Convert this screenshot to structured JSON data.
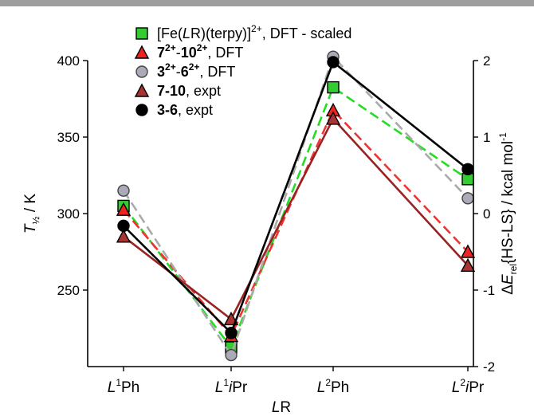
{
  "chart_data": {
    "type": "line",
    "categories": [
      {
        "base": "L",
        "sup": "1",
        "tail": "Ph",
        "tail_italic": false
      },
      {
        "base": "L",
        "sup": "1",
        "tail": "iPr",
        "tail_italic": true
      },
      {
        "base": "L",
        "sup": "2",
        "tail": "Ph",
        "tail_italic": false
      },
      {
        "base": "L",
        "sup": "2",
        "tail": "iPr",
        "tail_italic": true
      }
    ],
    "xlabel": {
      "italic": "L",
      "rest": "R"
    },
    "ylabel": {
      "italic": "T",
      "sub": "½",
      "rest": " / K"
    },
    "y2label": {
      "delta": "Δ",
      "italic": "E",
      "sub": "rel",
      "rest": "{HS-LS} / kcal mol",
      "sup": "-1"
    },
    "ylim": [
      200,
      400
    ],
    "yticks": [
      250,
      300,
      350,
      400
    ],
    "y2lim": [
      -2,
      2
    ],
    "y2ticks": [
      -2,
      -1,
      0,
      1,
      2
    ],
    "series": [
      {
        "name": "[Fe(LR)(terpy)]2+, DFT - scaled",
        "legend": [
          {
            "t": "[Fe("
          },
          {
            "t": "L",
            "i": true
          },
          {
            "t": "R)(terpy)]"
          },
          {
            "t": "2+",
            "sup": true
          },
          {
            "t": ", DFT - scaled"
          }
        ],
        "axis": "right",
        "values": [
          0.1,
          -1.75,
          1.65,
          0.45
        ],
        "color": "#22dd22",
        "marker": "square",
        "fill": "#33cc33",
        "stroke": "#000000",
        "dash": true
      },
      {
        "name": "7-10 (2+), DFT",
        "legend": [
          {
            "t": "7",
            "b": true
          },
          {
            "t": "2+",
            "sup": true,
            "b": true
          },
          {
            "t": "-"
          },
          {
            "t": "10",
            "b": true
          },
          {
            "t": "2+",
            "sup": true,
            "b": true
          },
          {
            "t": ", DFT"
          }
        ],
        "axis": "right",
        "values": [
          0.05,
          -1.6,
          1.35,
          -0.5
        ],
        "color": "#ee3333",
        "marker": "triangle",
        "fill": "#ee2222",
        "stroke": "#000000",
        "dash": true
      },
      {
        "name": "3-6 (2+), DFT",
        "legend": [
          {
            "t": "3",
            "b": true
          },
          {
            "t": "2+",
            "sup": true,
            "b": true
          },
          {
            "t": "-"
          },
          {
            "t": "6",
            "b": true
          },
          {
            "t": "2+",
            "sup": true,
            "b": true
          },
          {
            "t": ", DFT"
          }
        ],
        "axis": "right",
        "values": [
          0.3,
          -1.85,
          2.05,
          0.2
        ],
        "color": "#aaaaaa",
        "marker": "circle",
        "fill": "#aaaab8",
        "stroke": "#444444",
        "dash": true
      },
      {
        "name": "7-10, expt",
        "legend": [
          {
            "t": "7-10",
            "b": true
          },
          {
            "t": ", expt"
          }
        ],
        "axis": "left",
        "values": [
          285,
          231,
          362,
          266
        ],
        "color": "#992222",
        "marker": "triangle",
        "fill": "#aa3333",
        "stroke": "#000000",
        "dash": false
      },
      {
        "name": "3-6, expt",
        "legend": [
          {
            "t": "3-6",
            "b": true
          },
          {
            "t": ", expt"
          }
        ],
        "axis": "left",
        "values": [
          292,
          222,
          399,
          329
        ],
        "color": "#000000",
        "marker": "circle",
        "fill": "#000000",
        "stroke": "#000000",
        "dash": false
      }
    ]
  }
}
